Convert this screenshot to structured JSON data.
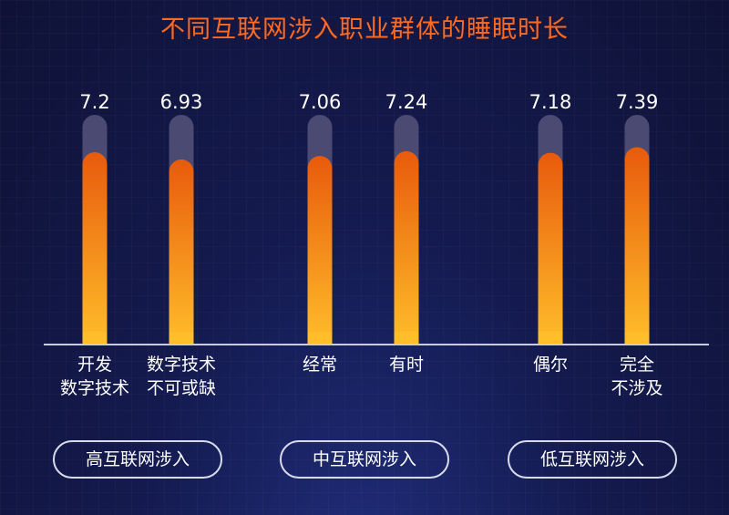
{
  "title": "不同互联网涉入职业群体的睡眠时长",
  "groups": [
    {
      "label": "高互联网涉入"
    },
    {
      "label": "中互联网涉入"
    },
    {
      "label": "低互联网涉入"
    }
  ],
  "colors": {
    "bar_top": "#e85a0c",
    "bar_bottom": "#ffbe2a",
    "track": "#4a4a72",
    "axis": "#c9cce0"
  },
  "chart_data": {
    "type": "bar",
    "title": "不同互联网涉入职业群体的睡眠时长",
    "categories": [
      [
        "开发",
        "数字技术"
      ],
      [
        "数字技术",
        "不可或缺"
      ],
      [
        "经常"
      ],
      [
        "有时"
      ],
      [
        "偶尔"
      ],
      [
        "完全",
        "不涉及"
      ]
    ],
    "values": [
      7.2,
      6.93,
      7.06,
      7.24,
      7.18,
      7.39
    ],
    "value_labels": [
      "7.2",
      "6.93",
      "7.06",
      "7.24",
      "7.18",
      "7.39"
    ],
    "group_of_bar": [
      0,
      0,
      1,
      1,
      2,
      2
    ],
    "ylim": [
      0,
      8.6
    ]
  }
}
